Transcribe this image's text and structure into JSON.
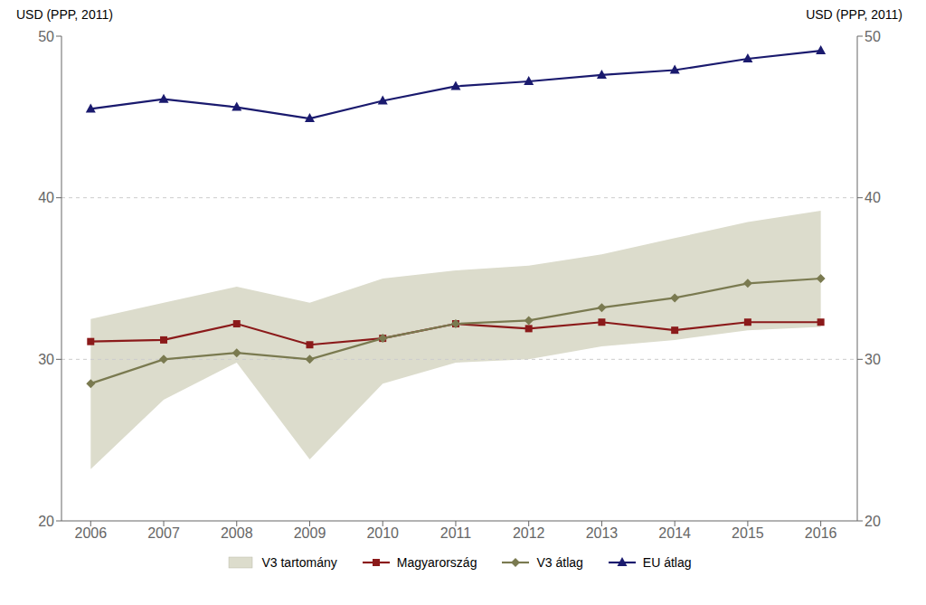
{
  "chart_data": {
    "type": "line",
    "x": [
      2006,
      2007,
      2008,
      2009,
      2010,
      2011,
      2012,
      2013,
      2014,
      2015,
      2016
    ],
    "xlim": [
      2005.6,
      2016.5
    ],
    "xticks": [
      2006,
      2007,
      2008,
      2009,
      2010,
      2011,
      2012,
      2013,
      2014,
      2015,
      2016
    ],
    "ylim": [
      20,
      50
    ],
    "yticks": [
      20,
      30,
      40,
      50
    ],
    "y2lim": [
      20,
      50
    ],
    "y2ticks": [
      20,
      30,
      40,
      50
    ],
    "ylabel": "USD (PPP, 2011)",
    "y2label": "USD (PPP, 2011)",
    "grid": true,
    "legend": "bottom",
    "series": [
      {
        "name": "V3 tartomány",
        "type": "band",
        "color": "#dcdccc",
        "lower": [
          23.2,
          27.5,
          29.8,
          23.8,
          28.5,
          29.8,
          30.0,
          30.8,
          31.2,
          31.8,
          32.0
        ],
        "upper": [
          32.5,
          33.5,
          34.5,
          33.5,
          35.0,
          35.5,
          35.8,
          36.5,
          37.5,
          38.5,
          39.2
        ]
      },
      {
        "name": "Magyarország",
        "type": "line",
        "color": "#8B1A1A",
        "marker": "square",
        "values": [
          31.1,
          31.2,
          32.2,
          30.9,
          31.3,
          32.2,
          31.9,
          32.3,
          31.8,
          32.3,
          32.3
        ]
      },
      {
        "name": "V3 átlag",
        "type": "line",
        "color": "#7a7a50",
        "marker": "diamond",
        "values": [
          28.5,
          30.0,
          30.4,
          30.0,
          31.3,
          32.2,
          32.4,
          33.2,
          33.8,
          34.7,
          35.0
        ]
      },
      {
        "name": "EU átlag",
        "type": "line",
        "color": "#1a1a6e",
        "marker": "triangle",
        "values": [
          45.5,
          46.1,
          45.6,
          44.9,
          46.0,
          46.9,
          47.2,
          47.6,
          47.9,
          48.6,
          49.1
        ]
      }
    ]
  }
}
